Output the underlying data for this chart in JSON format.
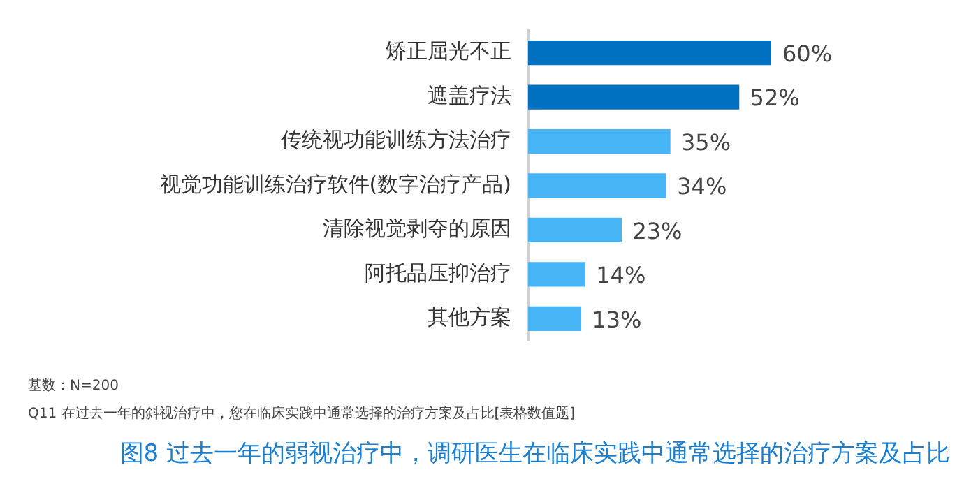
{
  "chart_data": {
    "type": "bar",
    "orientation": "horizontal",
    "title": "图8 过去一年的弱视治疗中，调研医生在临床实践中通常选择的治疗方案及占比",
    "categories": [
      "矫正屈光不正",
      "遮盖疗法",
      "传统视功能训练方法治疗",
      "视觉功能训练治疗软件(数字治疗产品)",
      "清除视觉剥夺的原因",
      "阿托品压抑治疗",
      "其他方案"
    ],
    "values": [
      60,
      52,
      35,
      34,
      23,
      14,
      13
    ],
    "value_labels": [
      "60%",
      "52%",
      "35%",
      "34%",
      "23%",
      "14%",
      "13%"
    ],
    "colors": [
      "#0070c0",
      "#0070c0",
      "#47b4f5",
      "#47b4f5",
      "#47b4f5",
      "#47b4f5",
      "#47b4f5"
    ],
    "annotations": [
      "基数：N=200",
      "Q11 在过去一年的斜视治疗中，您在临床实践中通常选择的治疗方案及占比[表格数值题]"
    ],
    "legend": false
  }
}
